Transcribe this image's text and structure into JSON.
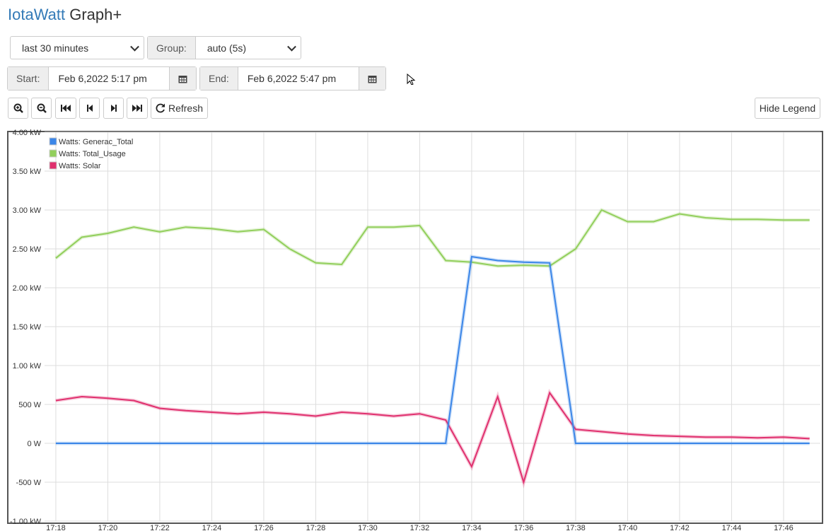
{
  "header": {
    "brand": "IotaWatt",
    "title": "Graph+"
  },
  "controls": {
    "period": "last 30 minutes",
    "group_label": "Group:",
    "group": "auto (5s)",
    "start_label": "Start:",
    "start": "Feb 6,2022 5:17 pm",
    "end_label": "End:",
    "end": "Feb 6,2022 5:47 pm",
    "refresh": "Refresh",
    "legend_toggle": "Hide Legend"
  },
  "chart_data": {
    "type": "line",
    "x": [
      "17:18",
      "17:19",
      "17:20",
      "17:21",
      "17:22",
      "17:23",
      "17:24",
      "17:25",
      "17:26",
      "17:27",
      "17:28",
      "17:29",
      "17:30",
      "17:31",
      "17:32",
      "17:33",
      "17:34",
      "17:35",
      "17:36",
      "17:37",
      "17:38",
      "17:39",
      "17:40",
      "17:41",
      "17:42",
      "17:43",
      "17:44",
      "17:45",
      "17:46",
      "17:47"
    ],
    "xlim": [
      "17:17:34",
      "17:47:25"
    ],
    "xticks": [
      "17:18",
      "17:20",
      "17:22",
      "17:24",
      "17:26",
      "17:28",
      "17:30",
      "17:32",
      "17:34",
      "17:36",
      "17:38",
      "17:40",
      "17:42",
      "17:44",
      "17:46"
    ],
    "ylim": [
      -1000,
      4000
    ],
    "yticks": [
      {
        "value": -1000,
        "label": "-1.00 kW"
      },
      {
        "value": -500,
        "label": "-500 W"
      },
      {
        "value": 0,
        "label": "0 W"
      },
      {
        "value": 500,
        "label": "500 W"
      },
      {
        "value": 1000,
        "label": "1.00 kW"
      },
      {
        "value": 1500,
        "label": "1.50 kW"
      },
      {
        "value": 2000,
        "label": "2.00 kW"
      },
      {
        "value": 2500,
        "label": "2.50 kW"
      },
      {
        "value": 3000,
        "label": "3.00 kW"
      },
      {
        "value": 3500,
        "label": "3.50 kW"
      },
      {
        "value": 4000,
        "label": "4.00 kW"
      }
    ],
    "grid": true,
    "legend": "top-left",
    "series": [
      {
        "name": "Watts: Generac_Total",
        "color": "#3b86e8",
        "values": [
          0,
          0,
          0,
          0,
          0,
          0,
          0,
          0,
          0,
          0,
          0,
          0,
          0,
          0,
          0,
          0,
          2400,
          2350,
          2330,
          2320,
          0,
          0,
          0,
          0,
          0,
          0,
          0,
          0,
          0,
          0
        ]
      },
      {
        "name": "Watts: Total_Usage",
        "color": "#92cf5c",
        "values": [
          2380,
          2650,
          2700,
          2780,
          2720,
          2780,
          2760,
          2720,
          2750,
          2500,
          2320,
          2300,
          2780,
          2780,
          2800,
          2350,
          2330,
          2280,
          2290,
          2280,
          2500,
          3000,
          2850,
          2850,
          2950,
          2900,
          2880,
          2880,
          2870,
          2870
        ]
      },
      {
        "name": "Watts: Solar",
        "color": "#e0306e",
        "values": [
          550,
          600,
          580,
          550,
          450,
          420,
          400,
          380,
          400,
          380,
          350,
          400,
          380,
          350,
          380,
          300,
          -300,
          600,
          -500,
          650,
          180,
          150,
          120,
          100,
          90,
          80,
          80,
          70,
          80,
          60
        ]
      }
    ]
  }
}
